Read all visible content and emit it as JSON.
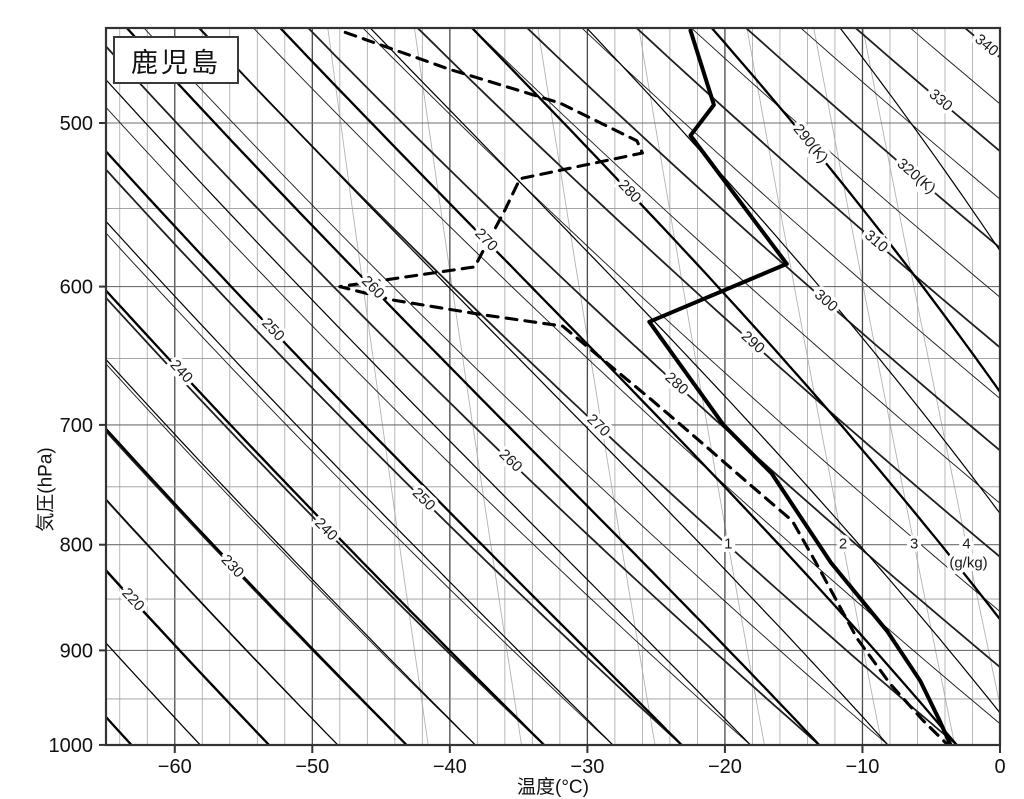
{
  "station_label": "鹿児島",
  "axes": {
    "y_label": "気圧(hPa)",
    "x_label": "温度(°C)",
    "y_ticks": [
      500,
      600,
      700,
      800,
      900,
      1000
    ],
    "x_ticks": [
      -60,
      -50,
      -40,
      -30,
      -20,
      -10,
      0
    ],
    "x_range_c": [
      -65,
      0
    ],
    "p_range_hpa": [
      450,
      1000
    ],
    "y_scale": "log-pressure"
  },
  "chart_data": {
    "type": "line",
    "subtype": "emagram-sounding",
    "title": "鹿児島",
    "xlabel": "温度(°C)",
    "ylabel": "気圧(hPa)",
    "xlim": [
      -65,
      0
    ],
    "pressure_lim": [
      450,
      1000
    ],
    "grid": {
      "isotherm_step_c": 2,
      "isotherm_major_step_c": 10,
      "pressure_step_hpa": 50,
      "pressure_major_step_hpa": 100
    },
    "series": [
      {
        "name": "temperature",
        "style": "solid-thick",
        "points_p_t": [
          [
            451,
            -22.5
          ],
          [
            490,
            -20.8
          ],
          [
            507,
            -22.5
          ],
          [
            585,
            -15.5
          ],
          [
            624,
            -25.5
          ],
          [
            700,
            -20.1
          ],
          [
            739,
            -16.6
          ],
          [
            816,
            -12.3
          ],
          [
            881,
            -8.2
          ],
          [
            931,
            -5.8
          ],
          [
            973,
            -4.4
          ],
          [
            1000,
            -3.6
          ]
        ]
      },
      {
        "name": "dewpoint",
        "style": "dashed-thick",
        "points_p_t": [
          [
            452,
            -47.6
          ],
          [
            471,
            -40.0
          ],
          [
            489,
            -32.0
          ],
          [
            510,
            -26.4
          ],
          [
            517,
            -26.0
          ],
          [
            532,
            -34.9
          ],
          [
            551,
            -36.0
          ],
          [
            587,
            -38.2
          ],
          [
            600,
            -48.0
          ],
          [
            609,
            -44.2
          ],
          [
            619,
            -37.7
          ],
          [
            627,
            -31.8
          ],
          [
            649,
            -29.1
          ],
          [
            681,
            -25.3
          ],
          [
            713,
            -21.8
          ],
          [
            748,
            -18.2
          ],
          [
            779,
            -15.1
          ],
          [
            818,
            -13.3
          ],
          [
            888,
            -10.4
          ],
          [
            934,
            -8.0
          ],
          [
            973,
            -5.6
          ],
          [
            1000,
            -3.8
          ]
        ]
      }
    ],
    "dry_adiabats": {
      "theta_k_min": 210,
      "theta_k_max": 340,
      "step_k": 5,
      "labels": [
        {
          "value": 220,
          "p": 851
        },
        {
          "value": 230,
          "p": 820
        },
        {
          "value": 240,
          "p": 787
        },
        {
          "value": 250,
          "p": 761
        },
        {
          "value": 260,
          "p": 729
        },
        {
          "value": 270,
          "p": 701
        },
        {
          "value": 280,
          "p": 669
        },
        {
          "value": 290,
          "p": 639
        },
        {
          "value": 300,
          "p": 610
        },
        {
          "value": 310,
          "p": 571
        },
        {
          "value": 320,
          "p": 531,
          "suffix": "(K)"
        },
        {
          "value": 330,
          "p": 488
        },
        {
          "value": 340,
          "p": 459
        }
      ]
    },
    "moist_adiabats": {
      "thetaw_k_min": 210,
      "thetaw_k_max": 295,
      "step_k": 5,
      "labels": [
        {
          "value": 240,
          "p": 660
        },
        {
          "value": 250,
          "p": 630
        },
        {
          "value": 260,
          "p": 601
        },
        {
          "value": 270,
          "p": 570
        },
        {
          "value": 280,
          "p": 540
        },
        {
          "value": 290,
          "p": 512,
          "suffix": "(K)"
        }
      ]
    },
    "mixing_ratio_lines": {
      "values_g_kg": [
        0.1,
        0.2,
        0.5,
        1,
        2,
        3,
        4
      ],
      "labeled_values": [
        1,
        2,
        3,
        4
      ],
      "label_pressure_hpa": 800,
      "unit_label": "(g/kg)"
    }
  }
}
